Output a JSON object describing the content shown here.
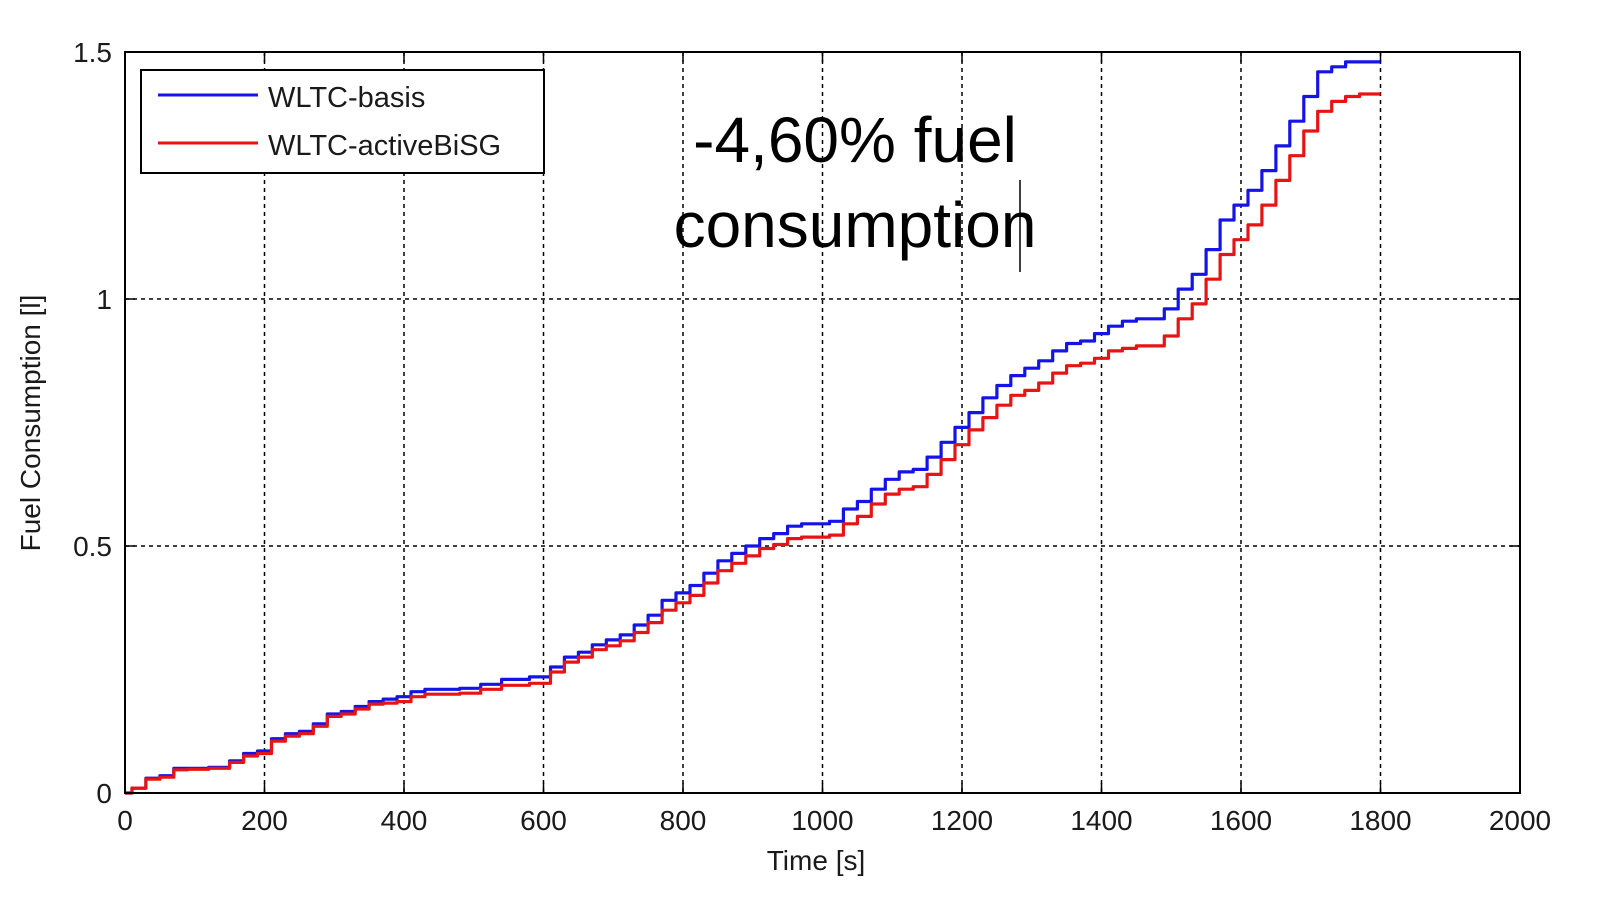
{
  "chart_data": {
    "type": "line",
    "xlabel": "Time [s]",
    "ylabel": "Fuel Consumption [l]",
    "xlim": [
      0,
      2000
    ],
    "ylim": [
      0,
      1.5
    ],
    "x_ticks": [
      0,
      200,
      400,
      600,
      800,
      1000,
      1200,
      1400,
      1600,
      1800,
      2000
    ],
    "x_tick_labels": [
      "0",
      "200",
      "400",
      "600",
      "800",
      "1000",
      "1200",
      "1400",
      "1600",
      "1800",
      "2000"
    ],
    "y_ticks": [
      0,
      0.5,
      1,
      1.5
    ],
    "y_tick_labels": [
      "0",
      "0.5",
      "1",
      "1.5"
    ],
    "grid": true,
    "legend_position": "top-left",
    "annotation": {
      "line1": "-4,60% fuel",
      "line2": "consumption"
    },
    "series": [
      {
        "name": "WLTC-basis",
        "color": "#1414e6",
        "x": [
          0,
          20,
          40,
          60,
          80,
          100,
          140,
          160,
          180,
          200,
          220,
          240,
          260,
          280,
          300,
          320,
          340,
          360,
          380,
          400,
          420,
          440,
          460,
          500,
          520,
          560,
          600,
          620,
          640,
          660,
          680,
          700,
          720,
          740,
          760,
          780,
          800,
          820,
          840,
          860,
          880,
          900,
          920,
          940,
          960,
          980,
          1000,
          1020,
          1040,
          1060,
          1080,
          1100,
          1120,
          1140,
          1160,
          1180,
          1200,
          1220,
          1240,
          1260,
          1280,
          1300,
          1320,
          1340,
          1360,
          1380,
          1400,
          1420,
          1440,
          1460,
          1480,
          1500,
          1520,
          1540,
          1560,
          1580,
          1600,
          1620,
          1640,
          1660,
          1680,
          1700,
          1720,
          1740,
          1760,
          1780,
          1800
        ],
        "y": [
          0,
          0.01,
          0.03,
          0.035,
          0.05,
          0.05,
          0.052,
          0.065,
          0.08,
          0.085,
          0.11,
          0.12,
          0.125,
          0.14,
          0.16,
          0.165,
          0.175,
          0.185,
          0.19,
          0.195,
          0.205,
          0.21,
          0.21,
          0.212,
          0.22,
          0.23,
          0.235,
          0.255,
          0.275,
          0.285,
          0.3,
          0.31,
          0.32,
          0.34,
          0.36,
          0.39,
          0.405,
          0.42,
          0.445,
          0.47,
          0.485,
          0.5,
          0.515,
          0.525,
          0.54,
          0.545,
          0.545,
          0.55,
          0.575,
          0.59,
          0.615,
          0.635,
          0.65,
          0.655,
          0.68,
          0.71,
          0.74,
          0.77,
          0.8,
          0.825,
          0.845,
          0.86,
          0.875,
          0.895,
          0.91,
          0.915,
          0.93,
          0.945,
          0.955,
          0.96,
          0.96,
          0.98,
          1.02,
          1.05,
          1.1,
          1.16,
          1.19,
          1.22,
          1.26,
          1.31,
          1.36,
          1.41,
          1.46,
          1.47,
          1.48,
          1.48,
          1.48
        ]
      },
      {
        "name": "WLTC-activeBiSG",
        "color": "#e61414",
        "x": [
          0,
          20,
          40,
          60,
          80,
          100,
          140,
          160,
          180,
          200,
          220,
          240,
          260,
          280,
          300,
          320,
          340,
          360,
          380,
          400,
          420,
          440,
          460,
          500,
          520,
          560,
          600,
          620,
          640,
          660,
          680,
          700,
          720,
          740,
          760,
          780,
          800,
          820,
          840,
          860,
          880,
          900,
          920,
          940,
          960,
          980,
          1000,
          1020,
          1040,
          1060,
          1080,
          1100,
          1120,
          1140,
          1160,
          1180,
          1200,
          1220,
          1240,
          1260,
          1280,
          1300,
          1320,
          1340,
          1360,
          1380,
          1400,
          1420,
          1440,
          1460,
          1480,
          1500,
          1520,
          1540,
          1560,
          1580,
          1600,
          1620,
          1640,
          1660,
          1680,
          1700,
          1720,
          1740,
          1760,
          1780,
          1800
        ],
        "y": [
          0,
          0.01,
          0.028,
          0.032,
          0.047,
          0.048,
          0.05,
          0.062,
          0.075,
          0.08,
          0.105,
          0.115,
          0.12,
          0.135,
          0.155,
          0.16,
          0.17,
          0.18,
          0.182,
          0.185,
          0.195,
          0.2,
          0.2,
          0.202,
          0.21,
          0.218,
          0.222,
          0.245,
          0.265,
          0.275,
          0.29,
          0.298,
          0.308,
          0.325,
          0.345,
          0.37,
          0.385,
          0.4,
          0.425,
          0.45,
          0.465,
          0.48,
          0.495,
          0.503,
          0.515,
          0.518,
          0.518,
          0.522,
          0.545,
          0.56,
          0.585,
          0.605,
          0.615,
          0.62,
          0.645,
          0.675,
          0.705,
          0.735,
          0.76,
          0.785,
          0.805,
          0.815,
          0.83,
          0.85,
          0.865,
          0.87,
          0.88,
          0.895,
          0.9,
          0.905,
          0.905,
          0.925,
          0.96,
          0.99,
          1.04,
          1.09,
          1.12,
          1.15,
          1.19,
          1.24,
          1.29,
          1.34,
          1.38,
          1.4,
          1.41,
          1.415,
          1.415
        ]
      }
    ]
  }
}
